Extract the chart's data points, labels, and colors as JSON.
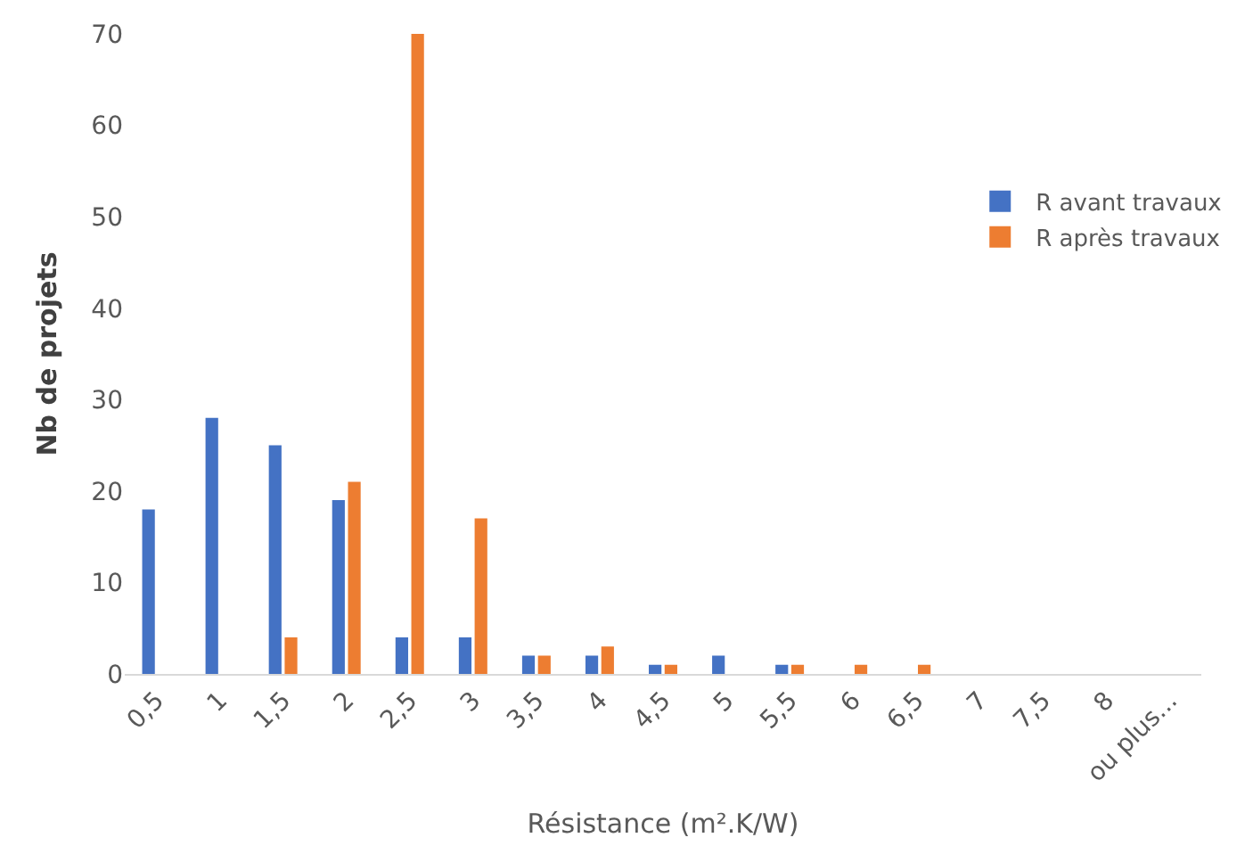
{
  "chart_data": {
    "type": "bar",
    "xlabel": "Résistance (m².K/W)",
    "ylabel": "Nb de projets",
    "categories": [
      "0,5",
      "1",
      "1,5",
      "2",
      "2,5",
      "3",
      "3,5",
      "4",
      "4,5",
      "5",
      "5,5",
      "6",
      "6,5",
      "7",
      "7,5",
      "8",
      "ou plus..."
    ],
    "series": [
      {
        "name": "R avant travaux",
        "color": "#4472c4",
        "values": [
          18,
          28,
          25,
          19,
          4,
          4,
          2,
          2,
          1,
          2,
          1,
          0,
          0,
          0,
          0,
          0,
          0
        ]
      },
      {
        "name": "R après travaux",
        "color": "#ed7d31",
        "values": [
          0,
          0,
          4,
          21,
          70,
          17,
          2,
          3,
          1,
          0,
          1,
          1,
          1,
          0,
          0,
          0,
          0
        ]
      }
    ],
    "ylim": [
      0,
      70
    ],
    "yticks": [
      0,
      10,
      20,
      30,
      40,
      50,
      60,
      70
    ],
    "legend": "right"
  }
}
